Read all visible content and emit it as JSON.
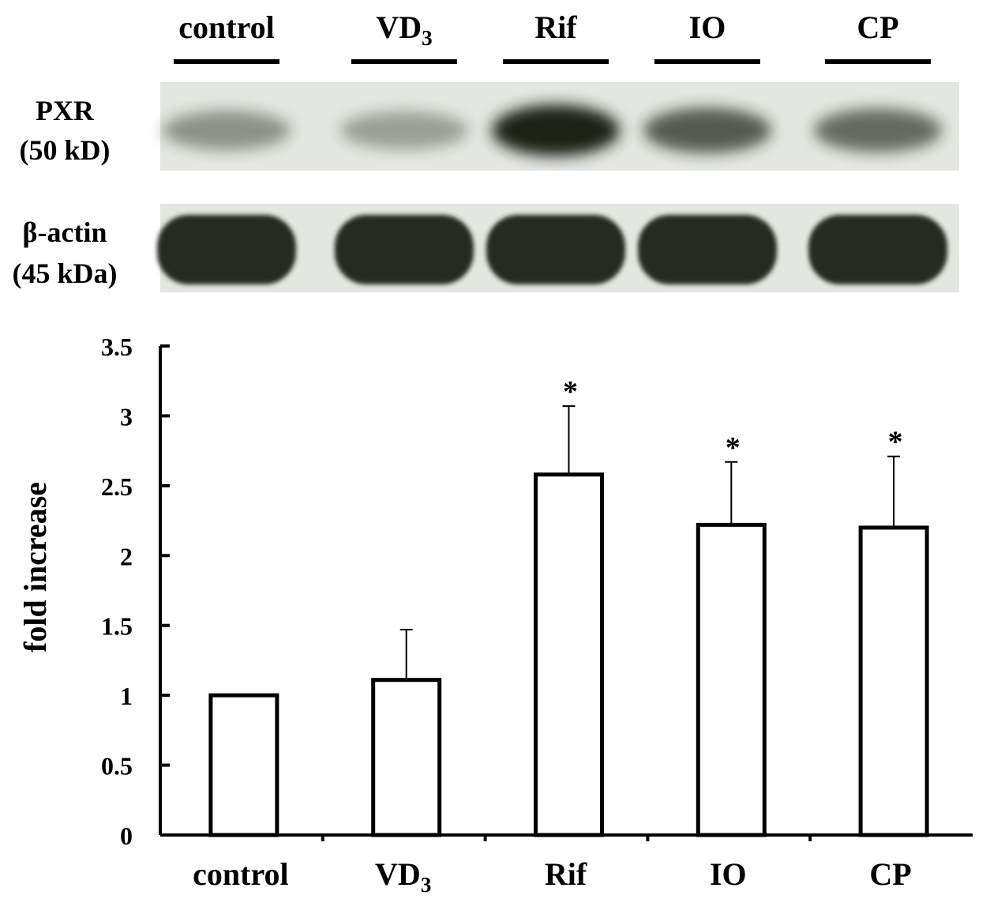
{
  "blot": {
    "lanes": [
      {
        "label": "control",
        "sub": ""
      },
      {
        "label": "VD",
        "sub": "3"
      },
      {
        "label": "Rif",
        "sub": ""
      },
      {
        "label": "IO",
        "sub": ""
      },
      {
        "label": "CP",
        "sub": ""
      }
    ],
    "rows": [
      {
        "label_line1": "PXR",
        "label_line2": "(50 kD)",
        "band_intensity": [
          0.3,
          0.22,
          1.0,
          0.65,
          0.55
        ]
      },
      {
        "label_line1": "β-actin",
        "label_line2": "(45 kDa)",
        "band_intensity": [
          1.0,
          1.0,
          1.0,
          1.0,
          1.0
        ]
      }
    ]
  },
  "chart_data": {
    "type": "bar",
    "categories": [
      {
        "label": "control",
        "sub": ""
      },
      {
        "label": "VD",
        "sub": "3"
      },
      {
        "label": "Rif",
        "sub": ""
      },
      {
        "label": "IO",
        "sub": ""
      },
      {
        "label": "CP",
        "sub": ""
      }
    ],
    "values": [
      1.0,
      1.11,
      2.58,
      2.22,
      2.2
    ],
    "error_upper": [
      0,
      0.36,
      0.49,
      0.45,
      0.51
    ],
    "significance": [
      "",
      "",
      "*",
      "*",
      "*"
    ],
    "ylabel": "fold increase",
    "ylim": [
      0,
      3.5
    ],
    "yticks": [
      0,
      0.5,
      1,
      1.5,
      2,
      2.5,
      3,
      3.5
    ],
    "ytick_labels": [
      "0",
      "0.5",
      "1",
      "1.5",
      "2",
      "2.5",
      "3",
      "3.5"
    ],
    "bar_fill": "#ffffff",
    "bar_stroke": "#000000",
    "grid": false,
    "legend": "none"
  }
}
